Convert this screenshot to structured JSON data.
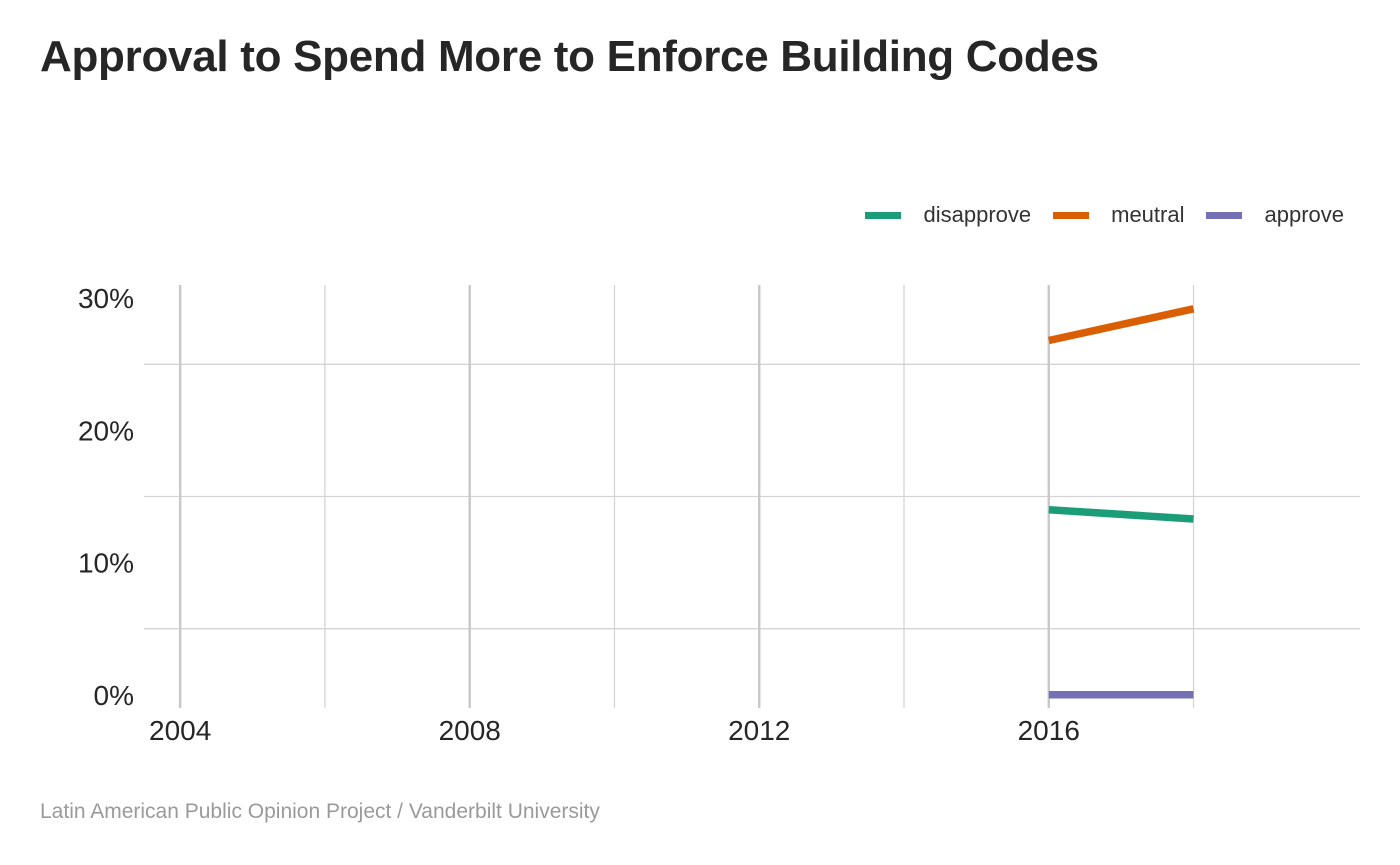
{
  "header": {
    "title": "Approval to Spend More to Enforce Building Codes"
  },
  "footer": {
    "source": "Latin American Public Opinion Project / Vanderbilt University"
  },
  "chart_data": {
    "type": "line",
    "title": "Approval to Spend More to Enforce Building Codes",
    "xlabel": "",
    "ylabel": "",
    "x": [
      2016,
      2018
    ],
    "xlim": [
      2003.5,
      2020.3
    ],
    "ylim": [
      -1,
      31
    ],
    "x_ticks": [
      2004,
      2008,
      2012,
      2016
    ],
    "x_tick_labels": [
      "2004",
      "2008",
      "2012",
      "2016"
    ],
    "x_minor_ticks": [
      2006,
      2010,
      2014,
      2018
    ],
    "y_ticks": [
      0,
      10,
      20,
      30
    ],
    "y_tick_labels": [
      "0%",
      "10%",
      "20%",
      "30%"
    ],
    "y_minor_ticks": [
      5,
      15,
      25
    ],
    "grid": true,
    "legend_position": "top-right",
    "series": [
      {
        "name": "disapprove",
        "color": "#1b9e77",
        "values": [
          14,
          13.3
        ]
      },
      {
        "name": "meutral",
        "color": "#d95f02",
        "values": [
          26.8,
          29.2
        ]
      },
      {
        "name": "approve",
        "color": "#7570b3",
        "values": [
          0,
          0
        ]
      }
    ]
  }
}
